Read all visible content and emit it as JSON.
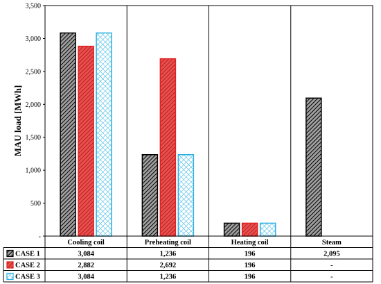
{
  "chart_data": {
    "type": "bar",
    "ylabel": "MAU load  [MWh]",
    "ylim": [
      0,
      3500
    ],
    "yticks": [
      "-",
      "500",
      "1,000",
      "1,500",
      "2,000",
      "2,500",
      "3,000",
      "3,500"
    ],
    "ytick_values": [
      0,
      500,
      1000,
      1500,
      2000,
      2500,
      3000,
      3500
    ],
    "categories": [
      "Cooling coil",
      "Preheating coil",
      "Heating coil",
      "Steam"
    ],
    "series": [
      {
        "name": "CASE 1",
        "values": [
          3084,
          1236,
          196,
          2095
        ],
        "labels": [
          "3,084",
          "1,236",
          "196",
          "2,095"
        ],
        "color": "#000000",
        "fill": "#9e9e9e",
        "pattern": "hatch"
      },
      {
        "name": "CASE 2",
        "values": [
          2882,
          2692,
          196,
          null
        ],
        "labels": [
          "2,882",
          "2,692",
          "196",
          "-"
        ],
        "color": "#e02020",
        "fill": "#e85050",
        "pattern": "hatch"
      },
      {
        "name": "CASE 3",
        "values": [
          3084,
          1236,
          196,
          null
        ],
        "labels": [
          "3,084",
          "1,236",
          "196",
          "-"
        ],
        "color": "#2ab0e0",
        "fill": "#ffffff",
        "pattern": "crosshatch"
      }
    ],
    "grid": false,
    "legend": "data-table-bottom"
  }
}
